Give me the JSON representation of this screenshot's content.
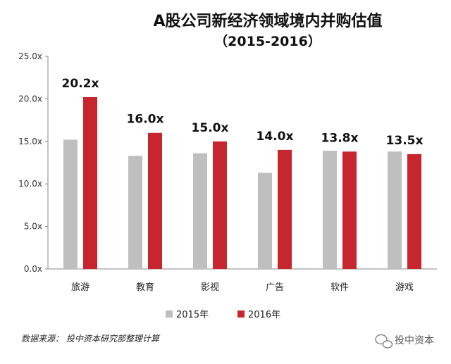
{
  "chart_data": {
    "type": "bar",
    "title": "A股公司新经济领域境内并购估值",
    "subtitle": "（2015-2016）",
    "categories": [
      "旅游",
      "教育",
      "影视",
      "广告",
      "软件",
      "游戏"
    ],
    "series": [
      {
        "name": "2015年",
        "values": [
          15.2,
          13.3,
          13.6,
          11.3,
          13.9,
          13.8
        ]
      },
      {
        "name": "2016年",
        "values": [
          20.2,
          16.0,
          15.0,
          14.0,
          13.8,
          13.5
        ]
      }
    ],
    "data_labels": [
      "20.2x",
      "16.0x",
      "15.0x",
      "14.0x",
      "13.8x",
      "13.5x"
    ],
    "yticks": [
      "0.0x",
      "5.0x",
      "10.0x",
      "15.0x",
      "20.0x",
      "25.0x"
    ],
    "ylim": [
      0,
      25
    ],
    "xlabel": "",
    "ylabel": "",
    "grid": false,
    "legend_position": "bottom-center"
  },
  "colors": {
    "series_2015": "#bfbfbf",
    "series_2016": "#c8262e",
    "axis": "#888888"
  },
  "footer": {
    "source": "数据来源： 投中资本研究部整理计算",
    "watermark": "投中资本"
  }
}
